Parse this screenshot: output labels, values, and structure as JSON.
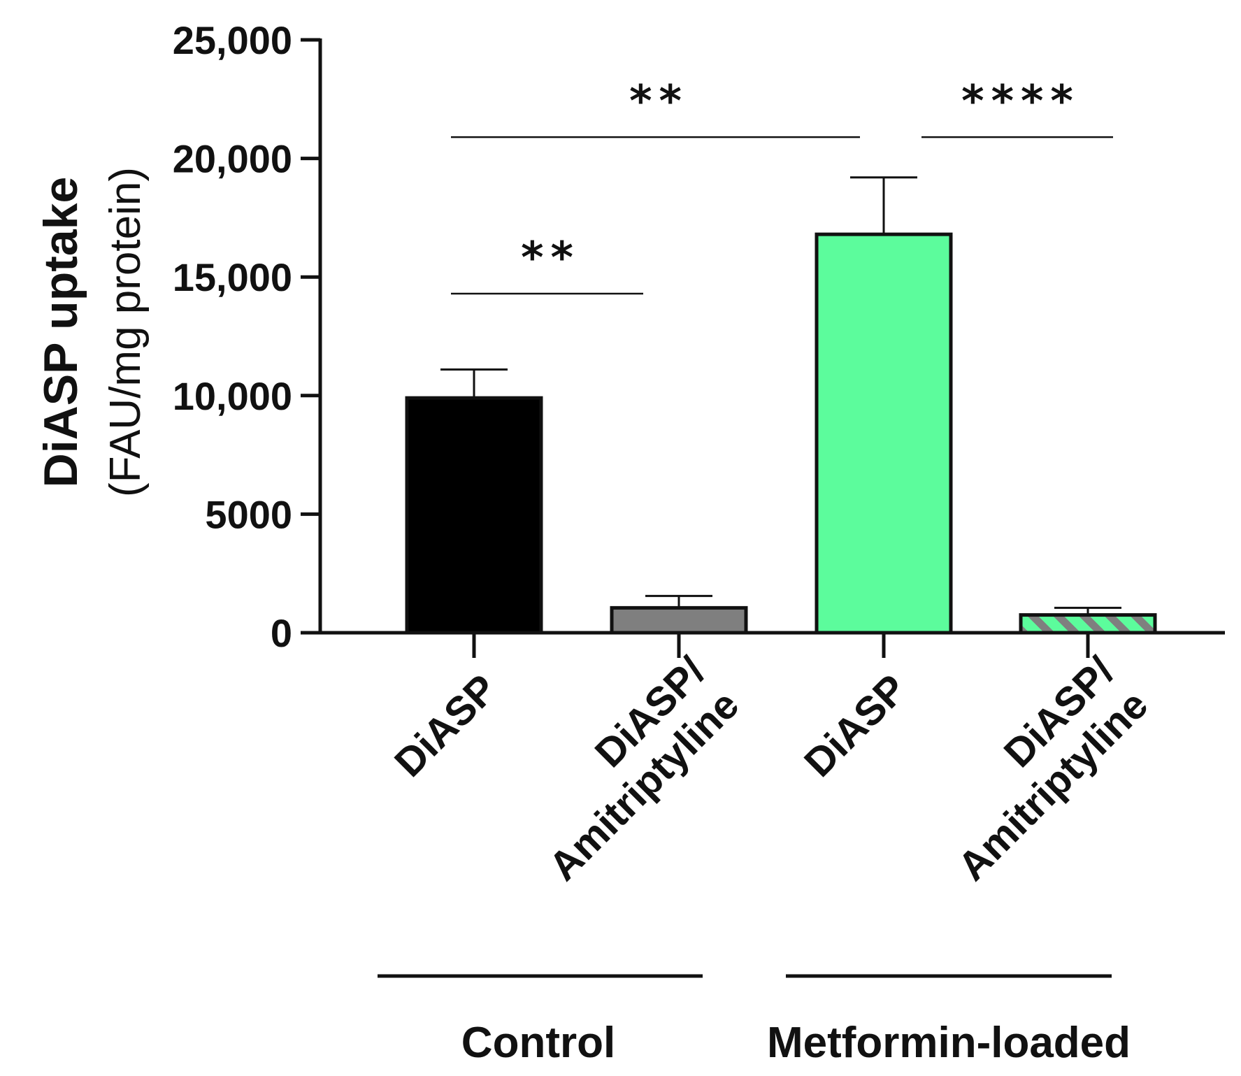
{
  "chart_data": {
    "type": "bar",
    "ylabel": "DiASP uptake",
    "ylabel_unit": "(FAU/mg protein)",
    "ylim": [
      0,
      25000
    ],
    "yticks": [
      {
        "value": 0,
        "label": "0"
      },
      {
        "value": 5000,
        "label": "5000"
      },
      {
        "value": 10000,
        "label": "10,000"
      },
      {
        "value": 15000,
        "label": "15,000"
      },
      {
        "value": 20000,
        "label": "20,000"
      },
      {
        "value": 25000,
        "label": "25,000"
      }
    ],
    "bars": [
      {
        "label_lines": [
          "DiASP"
        ],
        "group": "Control",
        "value": 9900,
        "error": 1200,
        "fill": "#000000",
        "pattern": "solid"
      },
      {
        "label_lines": [
          "DiASP/",
          "Amitriptyline"
        ],
        "group": "Control",
        "value": 1050,
        "error": 500,
        "fill": "#7f7f7f",
        "pattern": "solid"
      },
      {
        "label_lines": [
          "DiASP"
        ],
        "group": "Metformin-loaded",
        "value": 16800,
        "error": 2400,
        "fill": "#5cfc9c",
        "pattern": "solid"
      },
      {
        "label_lines": [
          "DiASP/",
          "Amitriptyline"
        ],
        "group": "Metformin-loaded",
        "value": 750,
        "error": 300,
        "fill": "#5cfc9c",
        "pattern": "hatch",
        "hatch_color": "#7f7f7f"
      }
    ],
    "groups": [
      {
        "name": "Control",
        "bars": [
          0,
          1
        ]
      },
      {
        "name": "Metformin-loaded",
        "bars": [
          2,
          3
        ]
      }
    ],
    "significance": [
      {
        "from": 0,
        "to": 1,
        "label": "**",
        "level": 14300
      },
      {
        "from": 0,
        "to": 2,
        "label": "**",
        "level": 20900
      },
      {
        "from": 2,
        "to": 3,
        "label": "****",
        "level": 20900
      }
    ],
    "colors": {
      "axis": "#111111",
      "text": "#111111"
    }
  }
}
